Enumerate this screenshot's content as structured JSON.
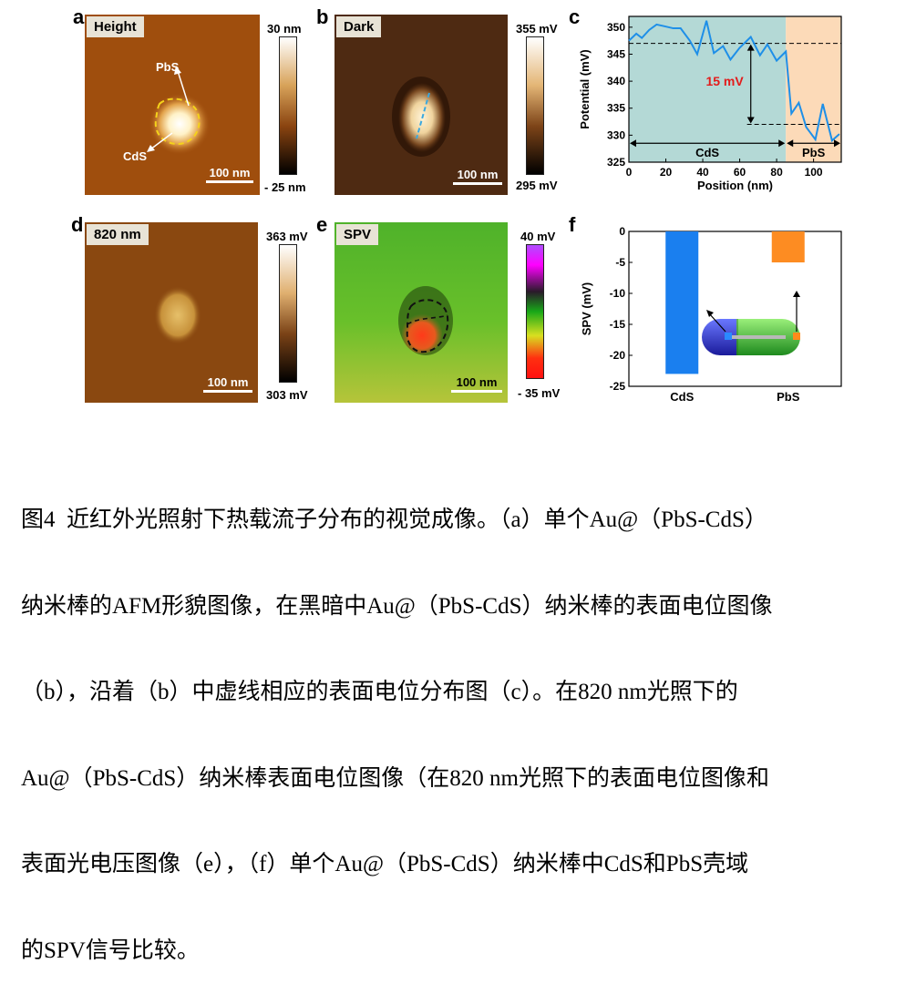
{
  "panels": {
    "a": {
      "letter": "a",
      "tag": "Height",
      "scale": "100 nm",
      "cbar_top": "30 nm",
      "cbar_bottom": "- 25 nm",
      "ann_top": "PbS",
      "ann_bottom": "CdS"
    },
    "b": {
      "letter": "b",
      "tag": "Dark",
      "scale": "100 nm",
      "cbar_top": "355 mV",
      "cbar_bottom": "295 mV"
    },
    "d": {
      "letter": "d",
      "tag": "820 nm",
      "scale": "100 nm",
      "cbar_top": "363 mV",
      "cbar_bottom": "303 mV"
    },
    "e": {
      "letter": "e",
      "tag": "SPV",
      "scale": "100 nm",
      "cbar_top": "40 mV",
      "cbar_bottom": "- 35  mV"
    }
  },
  "chart_c": {
    "letter": "c",
    "region1": "CdS",
    "region2": "PbS",
    "annotation": "15 mV"
  },
  "chart_f": {
    "letter": "f"
  },
  "chart_data": [
    {
      "type": "line",
      "panel": "c",
      "xlabel": "Position (nm)",
      "ylabel": "Potential (mV)",
      "xlim": [
        0,
        115
      ],
      "ylim": [
        325,
        352
      ],
      "xticks": [
        0,
        20,
        40,
        60,
        80,
        100
      ],
      "yticks": [
        325,
        330,
        335,
        340,
        345,
        350
      ],
      "line_color": "#1e8fe8",
      "x": [
        0,
        4,
        7,
        11,
        15,
        19,
        24,
        28,
        33,
        37,
        42,
        46,
        51,
        55,
        60,
        66,
        71,
        75,
        80,
        85,
        88,
        92,
        96,
        101,
        105,
        110,
        114
      ],
      "y": [
        347.5,
        348.8,
        348.0,
        349.5,
        350.5,
        350.2,
        349.8,
        349.8,
        347.5,
        345.0,
        351.2,
        345.2,
        346.5,
        344.0,
        346.2,
        348.2,
        344.8,
        346.8,
        343.8,
        345.5,
        334.0,
        336.0,
        331.5,
        329.2,
        335.8,
        329.0,
        330.2
      ],
      "dashed_levels": [
        347,
        332
      ],
      "regions": [
        {
          "label": "CdS",
          "from": 0,
          "to": 85,
          "color": "#b4d9d6"
        },
        {
          "label": "PbS",
          "from": 85,
          "to": 115,
          "color": "#fcdab8"
        }
      ]
    },
    {
      "type": "bar",
      "panel": "f",
      "ylabel": "SPV (mV)",
      "categories": [
        "CdS",
        "PbS"
      ],
      "values": [
        -23,
        -5
      ],
      "colors": [
        "#1a7fef",
        "#fd8c22"
      ],
      "ylim": [
        -25,
        0
      ],
      "yticks": [
        0,
        -5,
        -10,
        -15,
        -20,
        -25
      ]
    }
  ],
  "caption": {
    "lines": [
      "图4  近红外光照射下热载流子分布的视觉成像。（a）单个Au@（PbS-CdS）",
      "纳米棒的AFM形貌图像，在黑暗中Au@（PbS-CdS）纳米棒的表面电位图像",
      "（b），沿着（b）中虚线相应的表面电位分布图（c）。在820 nm光照下的",
      "Au@（PbS-CdS）纳米棒表面电位图像（在820 nm光照下的表面电位图像和",
      "表面光电压图像（e），（f）单个Au@（PbS-CdS）纳米棒中CdS和PbS壳域",
      "的SPV信号比较。"
    ]
  }
}
